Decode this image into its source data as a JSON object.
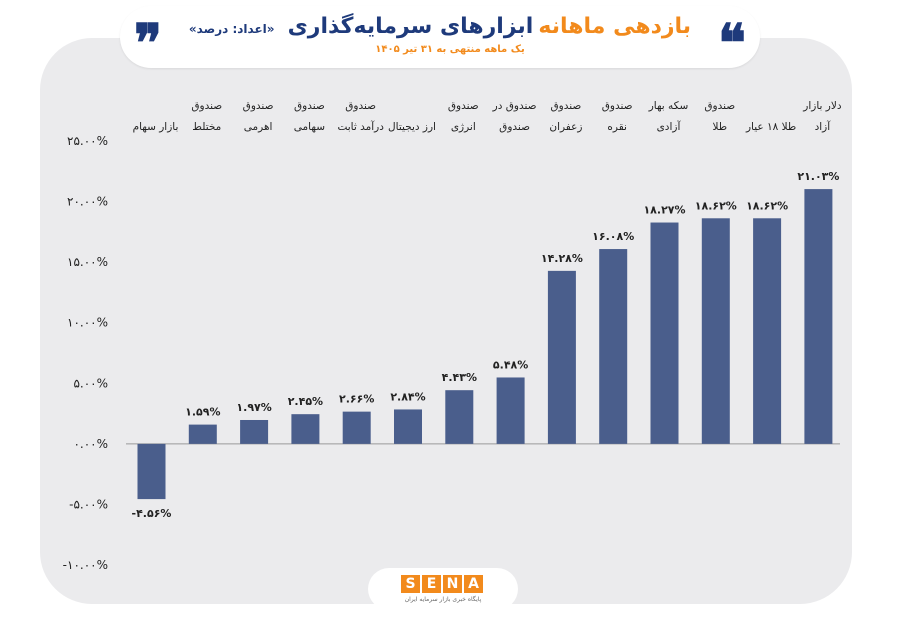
{
  "header": {
    "quote_open": "❞",
    "quote_close": "❝",
    "title_main": "ابزارهای سرمایه‌گذاری",
    "title_accent": "بازدهی ماهانه",
    "title_unit": "«اعداد: درصد»",
    "subtitle": "یک ماهه منتهی به ۳۱ تیر ۱۴۰۵"
  },
  "logo": {
    "letters": [
      "S",
      "E",
      "N",
      "A"
    ],
    "tagline": "پایگاه خبری بازار سرمایه ایران"
  },
  "colors": {
    "bar": "#4a5e8c",
    "accent": "#f28a1c",
    "brand": "#1e3a7b",
    "panel": "#ebebed"
  },
  "chart_data": {
    "type": "bar",
    "title": "بازدهی ماهانه ابزارهای سرمایه‌گذاری",
    "xlabel": "",
    "ylabel": "",
    "ylim": [
      -10,
      25
    ],
    "yticks": [
      25,
      20,
      15,
      10,
      5,
      0,
      -5,
      -10
    ],
    "ytick_labels": [
      "۲۵.۰۰%",
      "۲۰.۰۰%",
      "۱۵.۰۰%",
      "۱۰.۰۰%",
      "۵.۰۰%",
      "۰.۰۰%",
      "-۵.۰۰%",
      "-۱۰.۰۰%"
    ],
    "grid": false,
    "categories": [
      [
        "بازار سهام"
      ],
      [
        "صندوق",
        "مختلط"
      ],
      [
        "صندوق",
        "اهرمی"
      ],
      [
        "صندوق",
        "سهامی"
      ],
      [
        "صندوق",
        "درآمد ثابت"
      ],
      [
        "ارز دیجیتال"
      ],
      [
        "صندوق",
        "انرژی"
      ],
      [
        "صندوق در",
        "صندوق"
      ],
      [
        "صندوق",
        "زعفران"
      ],
      [
        "صندوق",
        "نقره"
      ],
      [
        "سکه بهار",
        "آزادی"
      ],
      [
        "صندوق",
        "طلا"
      ],
      [
        "طلا ۱۸ عیار"
      ],
      [
        "دلار بازار",
        "آزاد"
      ]
    ],
    "values": [
      -4.56,
      1.59,
      1.97,
      2.45,
      2.66,
      2.84,
      4.43,
      5.48,
      14.28,
      16.08,
      18.27,
      18.62,
      18.62,
      21.03
    ],
    "value_labels": [
      "-۴.۵۶%",
      "۱.۵۹%",
      "۱.۹۷%",
      "۲.۴۵%",
      "۲.۶۶%",
      "۲.۸۴%",
      "۴.۴۳%",
      "۵.۴۸%",
      "۱۴.۲۸%",
      "۱۶.۰۸%",
      "۱۸.۲۷%",
      "۱۸.۶۲%",
      "۱۸.۶۲%",
      "۲۱.۰۳%"
    ]
  }
}
